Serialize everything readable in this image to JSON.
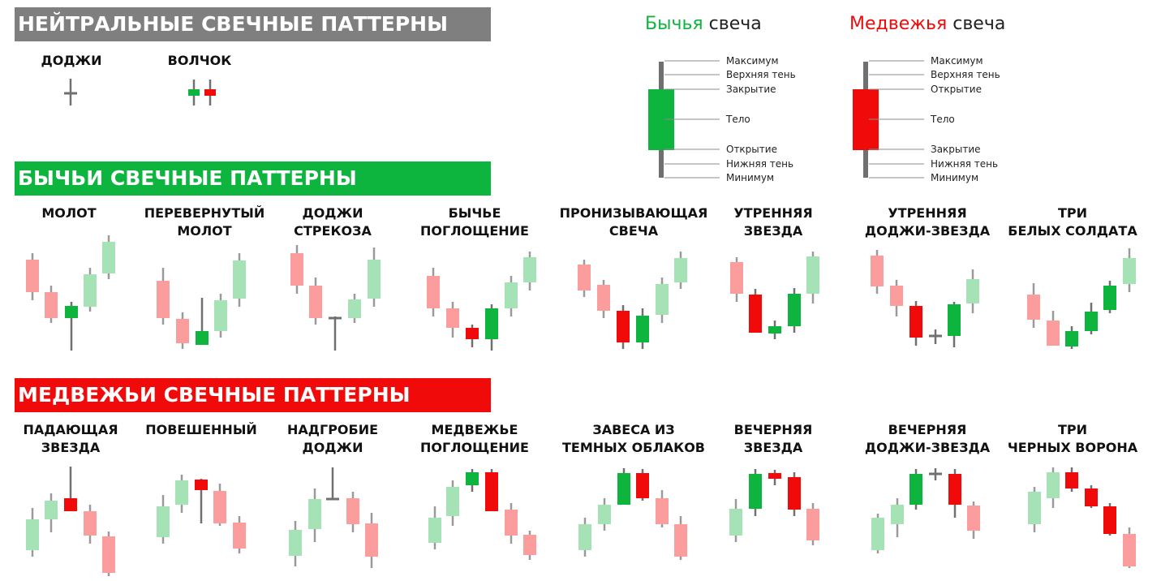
{
  "colors": {
    "bull": "#0db53f",
    "bull_light": "#a5e3b6",
    "bear": "#f00a0a",
    "bear_light": "#fc9d9d",
    "wick": "#707070",
    "neutral_banner": "#7f7f7f",
    "bull_banner": "#0db53f",
    "bear_banner": "#f00a0a"
  },
  "sections": {
    "neutral": "НЕЙТРАЛЬНЫЕ СВЕЧНЫЕ ПАТТЕРНЫ",
    "bullish": "БЫЧЬИ СВЕЧНЫЕ ПАТТЕРНЫ",
    "bearish": "МЕДВЕЖЬИ СВЕЧНЫЕ ПАТТЕРНЫ"
  },
  "neutral_patterns": [
    {
      "id": "doji",
      "label": [
        "ДОДЖИ"
      ]
    },
    {
      "id": "spinning-top",
      "label": [
        "ВОЛЧОК"
      ]
    }
  ],
  "legend": {
    "bull": {
      "title_colored": "Бычья",
      "title_rest": " свеча",
      "labels": [
        "Максимум",
        "Верхняя тень",
        "Закрытие",
        "Тело",
        "Открытие",
        "Нижняя тень",
        "Минимум"
      ]
    },
    "bear": {
      "title_colored": "Медвежья",
      "title_rest": " свеча",
      "labels": [
        "Максимум",
        "Верхняя тень",
        "Открытие",
        "Тело",
        "Закрытие",
        "Нижняя тень",
        "Минимум"
      ]
    }
  },
  "bullish_patterns": [
    {
      "id": "hammer",
      "label": [
        "МОЛОТ"
      ]
    },
    {
      "id": "inverted-hammer",
      "label": [
        "ПЕРЕВЕРНУТЫЙ",
        "МОЛОТ"
      ]
    },
    {
      "id": "dragonfly-doji",
      "label": [
        "ДОДЖИ",
        "СТРЕКОЗА"
      ]
    },
    {
      "id": "bullish-engulfing",
      "label": [
        "БЫЧЬЕ",
        "ПОГЛОЩЕНИЕ"
      ]
    },
    {
      "id": "piercing-line",
      "label": [
        "ПРОНИЗЫВАЮЩАЯ",
        "СВЕЧА"
      ]
    },
    {
      "id": "morning-star",
      "label": [
        "УТРЕННЯЯ",
        "ЗВЕЗДА"
      ]
    },
    {
      "id": "morning-doji-star",
      "label": [
        "УТРЕННЯЯ",
        "ДОДЖИ-ЗВЕЗДА"
      ]
    },
    {
      "id": "three-white-soldiers",
      "label": [
        "ТРИ",
        "БЕЛЫХ СОЛДАТА"
      ]
    }
  ],
  "bearish_patterns": [
    {
      "id": "shooting-star",
      "label": [
        "ПАДАЮЩАЯ",
        "ЗВЕЗДА"
      ]
    },
    {
      "id": "hanging-man",
      "label": [
        "ПОВЕШЕННЫЙ"
      ]
    },
    {
      "id": "gravestone-doji",
      "label": [
        "НАДГРОБИЕ",
        "ДОДЖИ"
      ]
    },
    {
      "id": "bearish-engulfing",
      "label": [
        "МЕДВЕЖЬЕ",
        "ПОГЛОЩЕНИЕ"
      ]
    },
    {
      "id": "dark-cloud-cover",
      "label": [
        "ЗАВЕСА ИЗ",
        "ТЕМНЫХ ОБЛАКОВ"
      ]
    },
    {
      "id": "evening-star",
      "label": [
        "ВЕЧЕРНЯЯ",
        "ЗВЕЗДА"
      ]
    },
    {
      "id": "evening-doji-star",
      "label": [
        "ВЕЧЕРНЯЯ",
        "ДОДЖИ-ЗВЕЗДА"
      ]
    },
    {
      "id": "three-black-crows",
      "label": [
        "ТРИ",
        "ЧЕРНЫХ ВОРОНА"
      ]
    }
  ]
}
